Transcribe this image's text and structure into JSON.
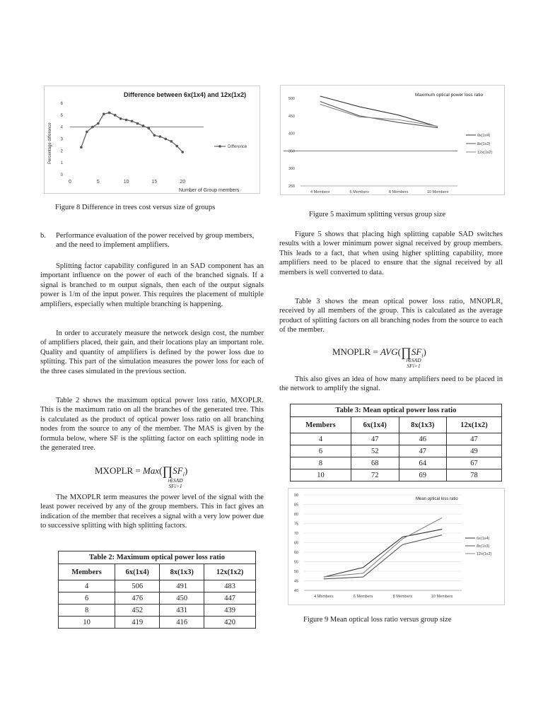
{
  "figure8": {
    "caption": "Figure 8 Difference in trees cost versus size of groups",
    "chart_data": {
      "type": "line",
      "title": "Difference between 6x(1x4) and 12x(1x2)",
      "xlabel": "Number of Group members",
      "ylabel": "Percentage difference",
      "xlim": [
        0,
        25
      ],
      "ylim": [
        0,
        6
      ],
      "xticks": [
        "0",
        "5",
        "10",
        "15",
        "20"
      ],
      "yticks": [
        "0",
        "1",
        "2",
        "3",
        "4",
        "5",
        "6"
      ],
      "reference_line": 4,
      "series": [
        {
          "name": "Difference",
          "x": [
            2,
            3,
            4,
            5,
            6,
            7,
            8,
            9,
            10,
            11,
            12,
            13,
            14,
            15,
            16,
            17,
            18,
            19,
            20
          ],
          "values": [
            2.3,
            3.6,
            4.0,
            4.3,
            5.1,
            5.2,
            5.0,
            4.7,
            4.6,
            4.5,
            4.3,
            4.1,
            3.9,
            3.3,
            3.2,
            3.0,
            2.8,
            2.4,
            1.9
          ]
        }
      ],
      "legend": "right"
    }
  },
  "figure5": {
    "caption": "Figure 5 maximum splitting versus group size",
    "chart_data": {
      "type": "line",
      "title": "Maximum optical power loss ratio",
      "categories": [
        "4 Members",
        "6 Members",
        "8 Members",
        "10 Members"
      ],
      "ylim": [
        250,
        500
      ],
      "yticks": [
        "250",
        "300",
        "350",
        "400",
        "450",
        "500"
      ],
      "reference_line": 350,
      "series": [
        {
          "name": "6x(1x4)",
          "values": [
            506,
            476,
            452,
            419
          ]
        },
        {
          "name": "8x(1x3)",
          "values": [
            491,
            450,
            431,
            416
          ]
        },
        {
          "name": "12x(1x2)",
          "values": [
            483,
            447,
            439,
            420
          ]
        }
      ],
      "legend": "right"
    }
  },
  "figure9": {
    "caption": "Figure 9 Mean optical loss ratio versus group size",
    "chart_data": {
      "type": "line",
      "title": "Mean optical loss ratio",
      "categories": [
        "4 Members",
        "6 Members",
        "8 Members",
        "10 Members"
      ],
      "ylim": [
        40,
        90
      ],
      "yticks": [
        "40",
        "45",
        "50",
        "55",
        "60",
        "65",
        "70",
        "75",
        "80",
        "85",
        "90"
      ],
      "series": [
        {
          "name": "6x(1x4)",
          "values": [
            47,
            52,
            68,
            72
          ]
        },
        {
          "name": "8x(1x3)",
          "values": [
            46,
            47,
            64,
            69
          ]
        },
        {
          "name": "12x(1x2)",
          "values": [
            47,
            49,
            67,
            78
          ]
        }
      ],
      "legend": "right"
    }
  },
  "left": {
    "section_b_marker": "b.",
    "section_b_text": "Performance evaluation of the power received by group members, and the need to implement amplifiers.",
    "para1": "Splitting factor capability configured in an SAD component has an important influence on the power of each of the branched signals. If a signal is branched to m output signals, then each of the output signals power is 1/m of the input power. This requires the placement of multiple amplifiers, especially when multiple branching is happening.",
    "para2": "In order to accurately measure the network design cost, the number of amplifiers placed, their gain, and their locations play an important role. Quality and quantity of amplifiers is defined by the power loss due to splitting. This part of the simulation measures the power loss for each of the three cases simulated in the previous section.",
    "para3": "Table 2 shows the maximum optical power loss ratio, MXOPLR. This is the maximum ratio on all the branches of the generated tree. This is calculated as the product of optical power loss ratio on all branching nodes from the source to any of the member. The MAS is given by the formula below, where SF is the splitting factor on each splitting node in the generated tree.",
    "eq_lhs": "MXOPLR = ",
    "eq_func": "Max",
    "eq_sub1": "i∈SAD",
    "eq_sub2": "SFi>1",
    "para4": "The MXOPLR term measures the power level of the signal with the least power received by any of the group members. This in fact gives an indication of the member that receives a signal with a very low power due to successive splitting with high splitting factors."
  },
  "table2": {
    "caption": "Table 2: Maximum optical power loss ratio",
    "headers": [
      "Members",
      "6x(1x4)",
      "8x(1x3)",
      "12x(1x2)"
    ],
    "rows": [
      [
        "4",
        "506",
        "491",
        "483"
      ],
      [
        "6",
        "476",
        "450",
        "447"
      ],
      [
        "8",
        "452",
        "431",
        "439"
      ],
      [
        "10",
        "419",
        "416",
        "420"
      ]
    ]
  },
  "right": {
    "para1": "Figure 5 shows that placing high splitting capable SAD switches results with a lower minimum power signal received by group members. This leads to a fact, that when using higher splitting capability, more amplifiers need to be placed to ensure that the signal received by all members is well converted to data.",
    "para2": "Table 3 shows the mean optical power loss ratio, MNOPLR, received by all members of the group. This is calculated as the average product of splitting factors on all branching nodes from the source to each of the member.",
    "eq_lhs": "MNOPLR = ",
    "eq_func": "AVG",
    "eq_sub1": "i∈SAD",
    "eq_sub2": "SFi>1",
    "para3": "This also gives an idea of how many amplifiers need to be placed in the network to amplify the signal."
  },
  "table3": {
    "caption": "Table 3: Mean optical power loss ratio",
    "headers": [
      "Members",
      "6x(1x4)",
      "8x(1x3)",
      "12x(1x2)"
    ],
    "rows": [
      [
        "4",
        "47",
        "46",
        "47"
      ],
      [
        "6",
        "52",
        "47",
        "49"
      ],
      [
        "8",
        "68",
        "64",
        "67"
      ],
      [
        "10",
        "72",
        "69",
        "78"
      ]
    ]
  }
}
